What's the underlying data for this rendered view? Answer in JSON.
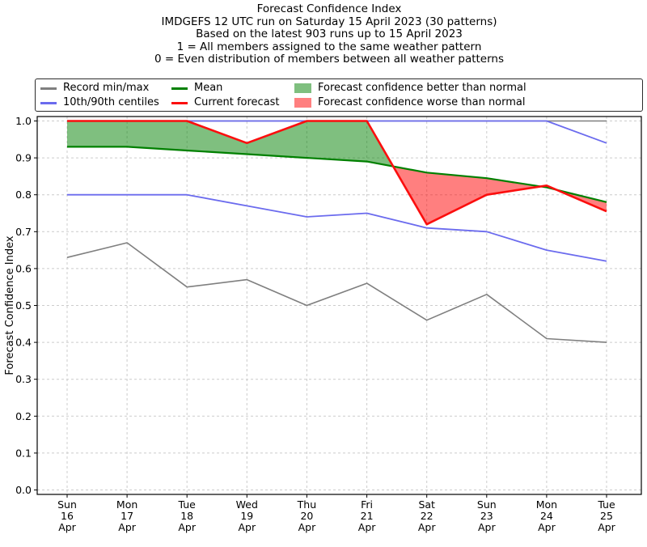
{
  "title": {
    "lines": [
      "Forecast Confidence Index",
      "IMDGEFS 12 UTC run on Saturday 15 April 2023 (30 patterns)",
      "Based on the latest 903 runs up to 15 April 2023",
      "1 = All members assigned to the same weather pattern",
      "0 = Even distribution of members between all weather patterns"
    ]
  },
  "legend": {
    "items": [
      {
        "label": "Record min/max",
        "type": "line",
        "color": "#7f7f7f"
      },
      {
        "label": "10th/90th centiles",
        "type": "line",
        "color": "#6b6bee"
      },
      {
        "label": "Mean",
        "type": "line",
        "color": "#008000"
      },
      {
        "label": "Current forecast",
        "type": "line",
        "color": "#fb0e0e"
      },
      {
        "label": "Forecast confidence better than normal",
        "type": "patch",
        "color": "rgba(0,128,0,0.5)"
      },
      {
        "label": "Forecast confidence worse than normal",
        "type": "patch",
        "color": "rgba(255,0,0,0.5)"
      }
    ]
  },
  "chart_data": {
    "type": "line",
    "title": "Forecast Confidence Index",
    "xlabel": "",
    "ylabel": "Forecast Confidence Index",
    "ylim": [
      0.0,
      1.0
    ],
    "yticks": [
      0.0,
      0.1,
      0.2,
      0.3,
      0.4,
      0.5,
      0.6,
      0.7,
      0.8,
      0.9,
      1.0
    ],
    "grid": "dashed, both axes",
    "legend_position": "top, 3 columns, expanded",
    "categories": [
      [
        "Sun",
        "16",
        "Apr"
      ],
      [
        "Mon",
        "17",
        "Apr"
      ],
      [
        "Tue",
        "18",
        "Apr"
      ],
      [
        "Wed",
        "19",
        "Apr"
      ],
      [
        "Thu",
        "20",
        "Apr"
      ],
      [
        "Fri",
        "21",
        "Apr"
      ],
      [
        "Sat",
        "22",
        "Apr"
      ],
      [
        "Sun",
        "23",
        "Apr"
      ],
      [
        "Mon",
        "24",
        "Apr"
      ],
      [
        "Tue",
        "25",
        "Apr"
      ]
    ],
    "series": [
      {
        "name": "Record max",
        "color": "#7f7f7f",
        "width": 1.6,
        "values": [
          1.0,
          1.0,
          1.0,
          1.0,
          1.0,
          1.0,
          1.0,
          1.0,
          1.0,
          1.0
        ]
      },
      {
        "name": "Record min",
        "color": "#7f7f7f",
        "width": 1.6,
        "values": [
          0.63,
          0.67,
          0.55,
          0.57,
          0.5,
          0.56,
          0.46,
          0.53,
          0.41,
          0.4
        ]
      },
      {
        "name": "90th centile",
        "color": "#6b6bee",
        "width": 1.8,
        "values": [
          1.0,
          1.0,
          1.0,
          1.0,
          1.0,
          1.0,
          1.0,
          1.0,
          1.0,
          0.94
        ]
      },
      {
        "name": "10th centile",
        "color": "#6b6bee",
        "width": 1.8,
        "values": [
          0.8,
          0.8,
          0.8,
          0.77,
          0.74,
          0.75,
          0.71,
          0.7,
          0.65,
          0.62
        ]
      },
      {
        "name": "Mean",
        "color": "#008000",
        "width": 2.2,
        "values": [
          0.93,
          0.93,
          0.92,
          0.91,
          0.9,
          0.89,
          0.86,
          0.845,
          0.82,
          0.78
        ]
      },
      {
        "name": "Current forecast",
        "color": "#fb0e0e",
        "width": 2.6,
        "values": [
          1.0,
          1.0,
          1.0,
          0.94,
          1.0,
          1.0,
          0.72,
          0.8,
          0.825,
          0.755
        ]
      }
    ],
    "fills": {
      "between": [
        "Current forecast",
        "Mean"
      ],
      "better_color": "rgba(0,128,0,0.5)",
      "worse_color": "rgba(255,0,0,0.5)",
      "rule": "green where current forecast >= mean, red where current forecast < mean"
    }
  }
}
